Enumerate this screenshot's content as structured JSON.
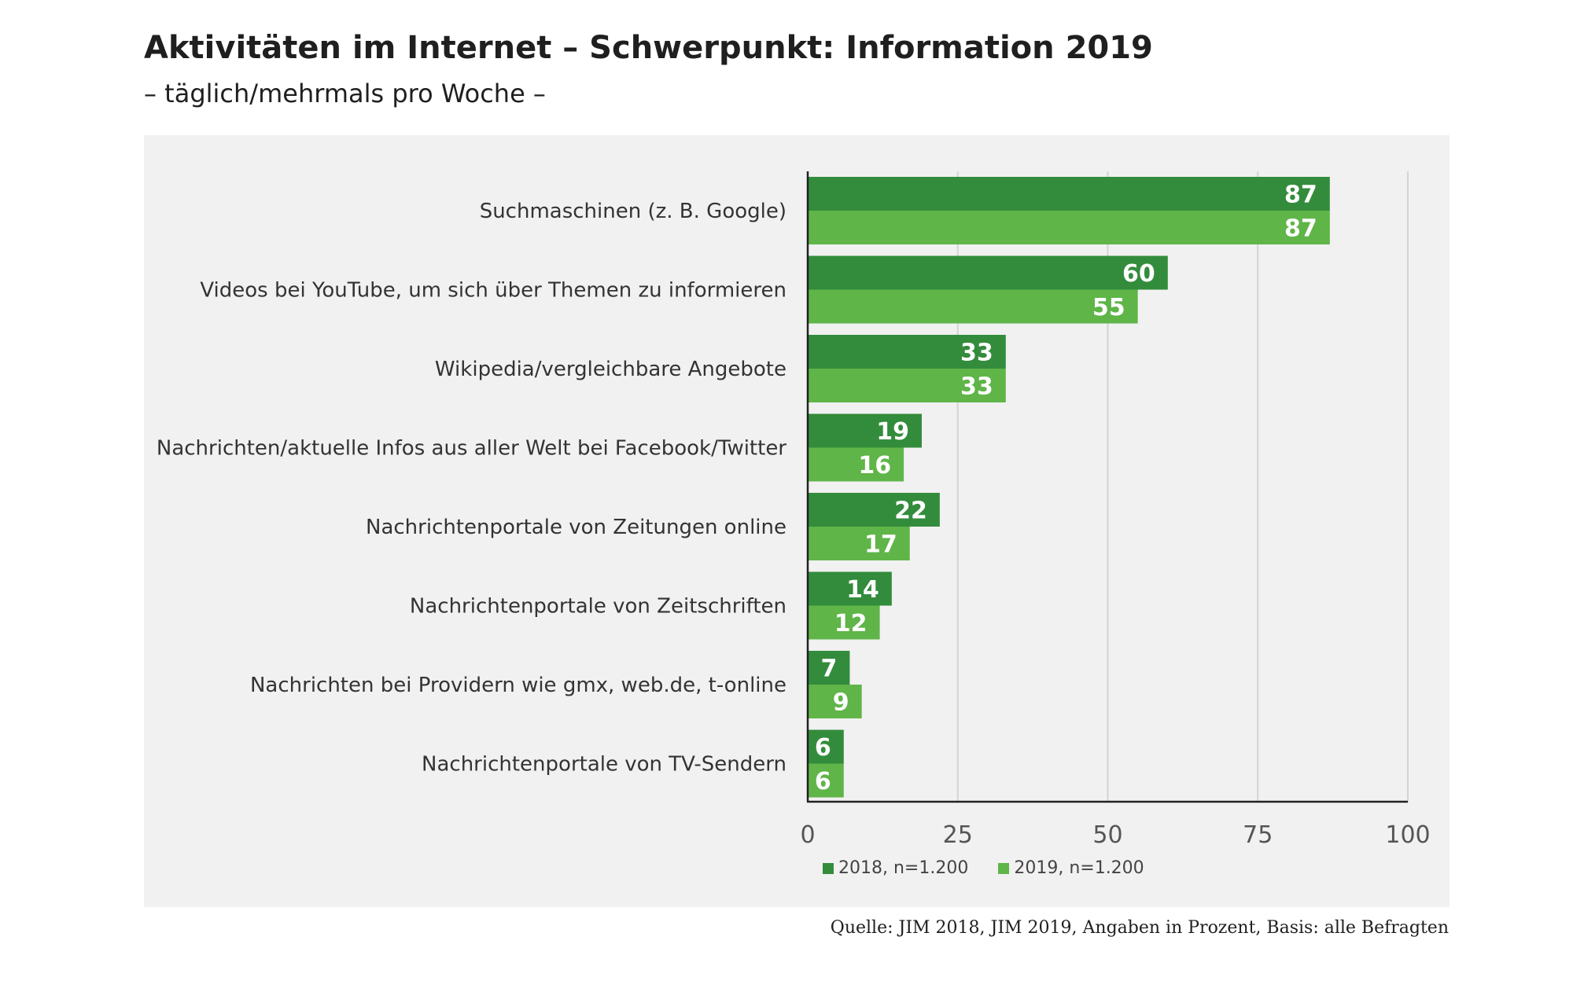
{
  "header": {
    "title": "Aktivitäten im Internet – Schwerpunkt: Information 2019",
    "subtitle": "– täglich/mehrmals pro Woche –"
  },
  "source": "Quelle: JIM 2018, JIM 2019, Angaben in Prozent, Basis: alle Befragten",
  "colors": {
    "series_2018": "#338c3c",
    "series_2019": "#5fb548",
    "panel_background": "#f1f1f1",
    "gridline": "#d4d4d4",
    "axis": "#222222",
    "bar_label": "#ffffff"
  },
  "chart_data": {
    "type": "bar",
    "orientation": "horizontal",
    "title": "Aktivitäten im Internet – Schwerpunkt: Information 2019",
    "subtitle": "– täglich/mehrmals pro Woche –",
    "categories": [
      "Suchmaschinen (z. B. Google)",
      "Videos bei YouTube, um sich über Themen zu informieren",
      "Wikipedia/vergleichbare Angebote",
      "Nachrichten/aktuelle Infos aus aller Welt bei Facebook/Twitter",
      "Nachrichtenportale von Zeitungen online",
      "Nachrichtenportale von Zeitschriften",
      "Nachrichten bei Providern wie gmx, web.de, t-online",
      "Nachrichtenportale von TV-Sendern"
    ],
    "series": [
      {
        "name": "2018, n=1.200",
        "values": [
          87,
          60,
          33,
          19,
          22,
          14,
          7,
          6
        ]
      },
      {
        "name": "2019, n=1.200",
        "values": [
          87,
          55,
          33,
          16,
          17,
          12,
          9,
          6
        ]
      }
    ],
    "xlim": [
      0,
      100
    ],
    "xticks": [
      0,
      25,
      50,
      75,
      100
    ],
    "xlabel": "",
    "ylabel": "",
    "grid": true,
    "legend_position": "bottom",
    "data_labels": true
  }
}
